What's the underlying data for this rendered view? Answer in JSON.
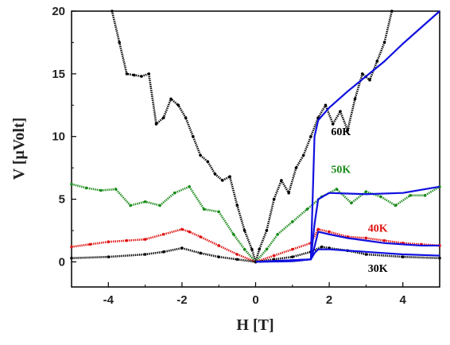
{
  "chart_data": {
    "type": "line",
    "title": "",
    "xlabel": "H [T]",
    "ylabel": "V [μVolt]",
    "xlim": [
      -5,
      5
    ],
    "ylim": [
      -2,
      20
    ],
    "xticks": [
      -4,
      -2,
      0,
      2,
      4
    ],
    "yticks": [
      0,
      5,
      10,
      15,
      20
    ],
    "grid": false,
    "legend": "none",
    "series": [
      {
        "name": "60K",
        "color": "#000000",
        "style": "dots",
        "x": [
          -3.9,
          -3.7,
          -3.5,
          -3.3,
          -3.1,
          -2.9,
          -2.7,
          -2.5,
          -2.3,
          -2.1,
          -1.9,
          -1.7,
          -1.5,
          -1.3,
          -1.1,
          -0.9,
          -0.7,
          -0.5,
          -0.3,
          -0.1,
          0.0,
          0.1,
          0.3,
          0.5,
          0.7,
          0.9,
          1.1,
          1.3,
          1.5,
          1.7,
          1.9,
          2.1,
          2.3,
          2.5,
          2.7,
          2.9,
          3.1,
          3.3,
          3.5,
          3.7
        ],
        "y": [
          20.0,
          17.5,
          15.0,
          14.9,
          14.8,
          15.0,
          11.0,
          11.5,
          13.0,
          12.5,
          11.5,
          10.0,
          8.5,
          8.0,
          7.0,
          6.5,
          6.8,
          4.5,
          2.5,
          1.0,
          0.0,
          1.0,
          2.5,
          5.0,
          6.5,
          5.5,
          7.5,
          8.5,
          10.0,
          11.5,
          12.5,
          11.0,
          12.0,
          10.5,
          13.0,
          15.0,
          14.5,
          16.0,
          17.5,
          20.0
        ]
      },
      {
        "name": "50K",
        "color": "#1a8a1a",
        "style": "dots",
        "x": [
          -5.0,
          -4.6,
          -4.2,
          -3.8,
          -3.4,
          -3.0,
          -2.6,
          -2.2,
          -1.8,
          -1.4,
          -1.0,
          -0.6,
          -0.3,
          0.0,
          0.3,
          0.6,
          1.0,
          1.4,
          1.8,
          2.2,
          2.6,
          3.0,
          3.4,
          3.8,
          4.2,
          4.6,
          5.0
        ],
        "y": [
          6.2,
          5.9,
          5.7,
          5.8,
          4.5,
          4.8,
          4.5,
          5.5,
          6.0,
          4.2,
          4.0,
          2.2,
          1.0,
          0.0,
          1.0,
          2.2,
          3.2,
          4.2,
          5.2,
          5.8,
          4.7,
          5.6,
          5.2,
          4.5,
          5.3,
          5.3,
          6.0
        ]
      },
      {
        "name": "40K",
        "color": "#e01010",
        "style": "dots",
        "x": [
          -5.0,
          -4.5,
          -4.0,
          -3.5,
          -3.0,
          -2.5,
          -2.0,
          -1.8,
          -1.5,
          -1.0,
          -0.5,
          0.0,
          0.5,
          1.0,
          1.5,
          1.7,
          2.0,
          2.5,
          3.0,
          3.5,
          4.0,
          4.5,
          5.0
        ],
        "y": [
          1.2,
          1.4,
          1.6,
          1.7,
          1.8,
          2.2,
          2.6,
          2.4,
          2.0,
          1.3,
          0.6,
          0.0,
          0.5,
          1.0,
          1.5,
          2.6,
          2.4,
          2.0,
          1.9,
          1.7,
          1.5,
          1.4,
          1.3
        ]
      },
      {
        "name": "30K",
        "color": "#000000",
        "style": "dots",
        "x": [
          -5.0,
          -4.0,
          -3.0,
          -2.5,
          -2.0,
          -1.5,
          -1.0,
          -0.5,
          0.0,
          0.5,
          1.0,
          1.5,
          1.8,
          2.0,
          2.5,
          3.0,
          4.0,
          5.0
        ],
        "y": [
          0.3,
          0.4,
          0.6,
          0.8,
          1.1,
          0.7,
          0.4,
          0.2,
          0.0,
          0.2,
          0.4,
          0.8,
          1.2,
          1.1,
          0.9,
          0.6,
          0.4,
          0.3
        ]
      },
      {
        "name": "60K fit",
        "color": "#1010e0",
        "style": "line",
        "x": [
          0.0,
          1.0,
          1.5,
          1.6,
          1.7,
          2.0,
          2.5,
          3.0,
          3.5,
          4.0,
          4.5,
          5.0
        ],
        "y": [
          0.0,
          0.05,
          0.2,
          10.0,
          11.3,
          12.3,
          13.6,
          14.8,
          16.0,
          17.4,
          18.7,
          20.0
        ]
      },
      {
        "name": "50K fit",
        "color": "#1010e0",
        "style": "line",
        "x": [
          0.0,
          1.5,
          1.6,
          1.7,
          2.0,
          2.5,
          3.0,
          4.0,
          5.0
        ],
        "y": [
          0.0,
          0.2,
          3.0,
          5.0,
          5.5,
          5.45,
          5.4,
          5.5,
          6.0
        ]
      },
      {
        "name": "40K fit",
        "color": "#1010e0",
        "style": "line",
        "x": [
          0.0,
          1.5,
          1.6,
          1.7,
          2.0,
          2.5,
          3.0,
          3.5,
          4.0,
          4.5,
          5.0
        ],
        "y": [
          0.0,
          0.2,
          1.2,
          2.4,
          2.2,
          1.9,
          1.7,
          1.5,
          1.4,
          1.3,
          1.3
        ]
      },
      {
        "name": "30K fit",
        "color": "#1010e0",
        "style": "line",
        "x": [
          0.0,
          1.5,
          1.6,
          1.7,
          2.0,
          2.5,
          3.0,
          4.0,
          5.0
        ],
        "y": [
          0.0,
          0.2,
          0.7,
          1.0,
          1.0,
          0.9,
          0.8,
          0.6,
          0.5
        ]
      }
    ],
    "annotations": [
      {
        "text": "60K",
        "color": "#000000",
        "x": 2.05,
        "y": 10.1
      },
      {
        "text": "50K",
        "color": "#1a8a1a",
        "x": 2.05,
        "y": 7.1
      },
      {
        "text": "40K",
        "color": "#e01010",
        "x": 3.05,
        "y": 2.4
      },
      {
        "text": "30K",
        "color": "#000000",
        "x": 3.05,
        "y": -0.8
      }
    ]
  }
}
